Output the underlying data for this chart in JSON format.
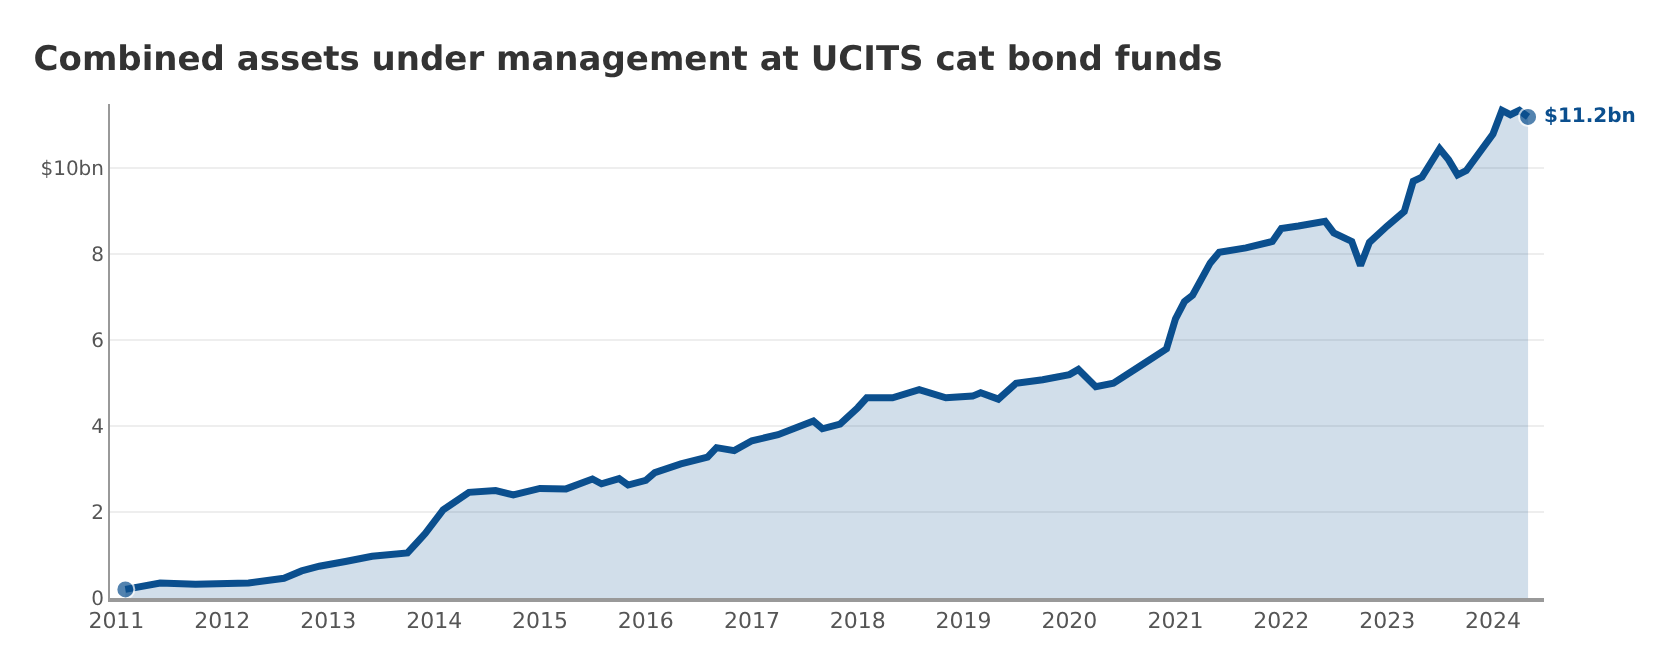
{
  "chart_data": {
    "type": "area",
    "title": "Combined assets under management at UCITS cat bond funds",
    "x": [
      "2011-02",
      "2011-06",
      "2011-10",
      "2012-04",
      "2012-08",
      "2012-10",
      "2012-12",
      "2013-03",
      "2013-06",
      "2013-10",
      "2013-11",
      "2013-12",
      "2014-02",
      "2014-05",
      "2014-08",
      "2014-10",
      "2015-01",
      "2015-04",
      "2015-07",
      "2015-08",
      "2015-10",
      "2015-11",
      "2016-01",
      "2016-02",
      "2016-05",
      "2016-08",
      "2016-09",
      "2016-11",
      "2017-01",
      "2017-04",
      "2017-08",
      "2017-09",
      "2017-11",
      "2018-01",
      "2018-02",
      "2018-04",
      "2018-05",
      "2018-08",
      "2018-11",
      "2019-02",
      "2019-03",
      "2019-05",
      "2019-07",
      "2019-10",
      "2020-01",
      "2020-02",
      "2020-04",
      "2020-06",
      "2020-09",
      "2020-12",
      "2021-01",
      "2021-02",
      "2021-03",
      "2021-05",
      "2021-06",
      "2021-09",
      "2021-12",
      "2022-01",
      "2022-03",
      "2022-06",
      "2022-07",
      "2022-09",
      "2022-10",
      "2022-11",
      "2023-01",
      "2023-03",
      "2023-04",
      "2023-05",
      "2023-07",
      "2023-08",
      "2023-09",
      "2023-10",
      "2024-01",
      "2024-02",
      "2024-03",
      "2024-04",
      "2024-05"
    ],
    "series": [
      {
        "color": "#0b4f8e",
        "values": [
          0.2,
          0.35,
          0.32,
          0.35,
          0.46,
          0.63,
          0.74,
          0.85,
          0.97,
          1.05,
          1.28,
          1.5,
          2.05,
          2.46,
          2.5,
          2.4,
          2.55,
          2.54,
          2.77,
          2.66,
          2.78,
          2.63,
          2.74,
          2.92,
          3.12,
          3.28,
          3.5,
          3.43,
          3.66,
          3.8,
          4.12,
          3.94,
          4.05,
          4.43,
          4.66,
          4.66,
          4.66,
          4.85,
          4.66,
          4.7,
          4.78,
          4.63,
          5.0,
          5.08,
          5.2,
          5.32,
          4.92,
          5.0,
          5.4,
          5.8,
          6.5,
          6.9,
          7.05,
          7.8,
          8.05,
          8.15,
          8.3,
          8.6,
          8.66,
          8.77,
          8.5,
          8.3,
          7.74,
          8.28,
          8.66,
          9.0,
          9.7,
          9.8,
          10.46,
          10.2,
          9.85,
          9.95,
          10.8,
          11.35,
          11.25,
          11.35,
          11.2
        ]
      }
    ],
    "xlim": [
      "2010-12-10",
      "2024-06-25"
    ],
    "xticks": [
      {
        "value": "2011-01-01",
        "label": "2011"
      },
      {
        "value": "2012-01-01",
        "label": "2012"
      },
      {
        "value": "2013-01-01",
        "label": "2013"
      },
      {
        "value": "2014-01-01",
        "label": "2014"
      },
      {
        "value": "2015-01-01",
        "label": "2015"
      },
      {
        "value": "2016-01-01",
        "label": "2016"
      },
      {
        "value": "2017-01-01",
        "label": "2017"
      },
      {
        "value": "2018-01-01",
        "label": "2018"
      },
      {
        "value": "2019-01-01",
        "label": "2019"
      },
      {
        "value": "2020-01-01",
        "label": "2020"
      },
      {
        "value": "2021-01-01",
        "label": "2021"
      },
      {
        "value": "2022-01-01",
        "label": "2022"
      },
      {
        "value": "2023-01-01",
        "label": "2023"
      },
      {
        "value": "2024-01-01",
        "label": "2024"
      }
    ],
    "ylim": [
      0,
      11.5
    ],
    "yticks": [
      0,
      2,
      4,
      6,
      8,
      {
        "value": 10,
        "label": "$10bn"
      }
    ],
    "grid": "y",
    "annotations": [
      {
        "text": "$11.2bn",
        "x": "2024-05",
        "y": 11.2
      }
    ]
  }
}
